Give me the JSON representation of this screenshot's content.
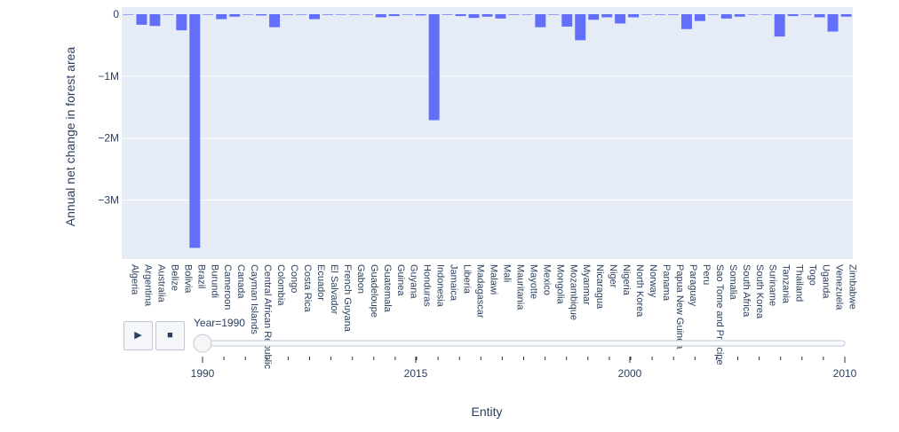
{
  "chart_data": {
    "type": "bar",
    "title": "",
    "xlabel": "Entity",
    "ylabel": "Annual net change in forest area",
    "ylim": [
      -3950000,
      0
    ],
    "yticks": [
      0,
      -1000000,
      -2000000,
      -3000000
    ],
    "ytick_labels": [
      "0",
      "−1M",
      "−2M",
      "−3M"
    ],
    "grid": true,
    "bar_color": "#636efa",
    "plot_bg": "#e5ecf6",
    "categories": [
      "Algeria",
      "Argentina",
      "Australia",
      "Belize",
      "Bolivia",
      "Brazil",
      "Burundi",
      "Cameroon",
      "Canada",
      "Cayman Islands",
      "Central African Republic",
      "Colombia",
      "Congo",
      "Costa Rica",
      "Ecuador",
      "El Salvador",
      "French Guyana",
      "Gabon",
      "Guadeloupe",
      "Guatemala",
      "Guinea",
      "Guyana",
      "Honduras",
      "Indonesia",
      "Jamaica",
      "Liberia",
      "Madagascar",
      "Malawi",
      "Mali",
      "Mauritania",
      "Mayotte",
      "Mexico",
      "Mongolia",
      "Mozambique",
      "Myanmar",
      "Nicaragua",
      "Niger",
      "Nigeria",
      "North Korea",
      "Norway",
      "Panama",
      "Papua New Guinea",
      "Paraguay",
      "Peru",
      "Sao Tome and Principe",
      "Somalia",
      "South Africa",
      "South Korea",
      "Suriname",
      "Tanzania",
      "Thailand",
      "Togo",
      "Uganda",
      "Venezuela",
      "Zimbabwe"
    ],
    "values": [
      0,
      -170000,
      -190000,
      -10000,
      -260000,
      -3770000,
      -1000,
      -80000,
      -40000,
      0,
      -20000,
      -210000,
      -10000,
      0,
      -80000,
      -10000,
      -5000,
      0,
      0,
      -50000,
      -30000,
      0,
      -20000,
      -1710000,
      -10000,
      -30000,
      -60000,
      -40000,
      -70000,
      -10000,
      0,
      -210000,
      0,
      -200000,
      -420000,
      -90000,
      -50000,
      -150000,
      -50000,
      0,
      -10000,
      -10000,
      -240000,
      -110000,
      0,
      -70000,
      -40000,
      0,
      -5000,
      -360000,
      -30000,
      -10000,
      -50000,
      -280000,
      -40000
    ]
  },
  "animation": {
    "slider_label": "Year=1990",
    "slider_ticks": [
      "1990",
      "2015",
      "2000",
      "2010"
    ],
    "play_icon": "▶",
    "stop_icon": "■",
    "current_value": "1990"
  }
}
